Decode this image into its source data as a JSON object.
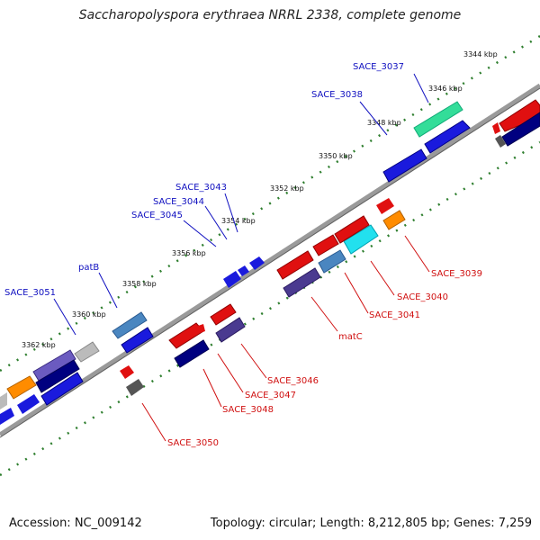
{
  "title": "Saccharopolyspora erythraea NRRL 2338, complete genome",
  "footer": {
    "accession": "Accession: NC_009142",
    "summary": "Topology: circular; Length: 8,212,805 bp; Genes: 7,259"
  },
  "colors": {
    "backbone": "#808080",
    "tick": "#2f7f2f",
    "forward_label": "#1010c0",
    "reverse_label": "#d01010"
  },
  "scale_labels": [
    "3344 kbp",
    "3346 kbp",
    "3348 kbp",
    "3350 kbp",
    "3352 kbp",
    "3354 kbp",
    "3356 kbp",
    "3358 kbp",
    "3360 kbp",
    "3362 kbp"
  ],
  "forward_labels": [
    "SACE_3037",
    "SACE_3038",
    "SACE_3043",
    "SACE_3044",
    "SACE_3045",
    "patB",
    "SACE_3051"
  ],
  "reverse_labels": [
    "SACE_3039",
    "SACE_3040",
    "SACE_3041",
    "matC",
    "SACE_3046",
    "SACE_3047",
    "SACE_3048",
    "SACE_3050"
  ]
}
